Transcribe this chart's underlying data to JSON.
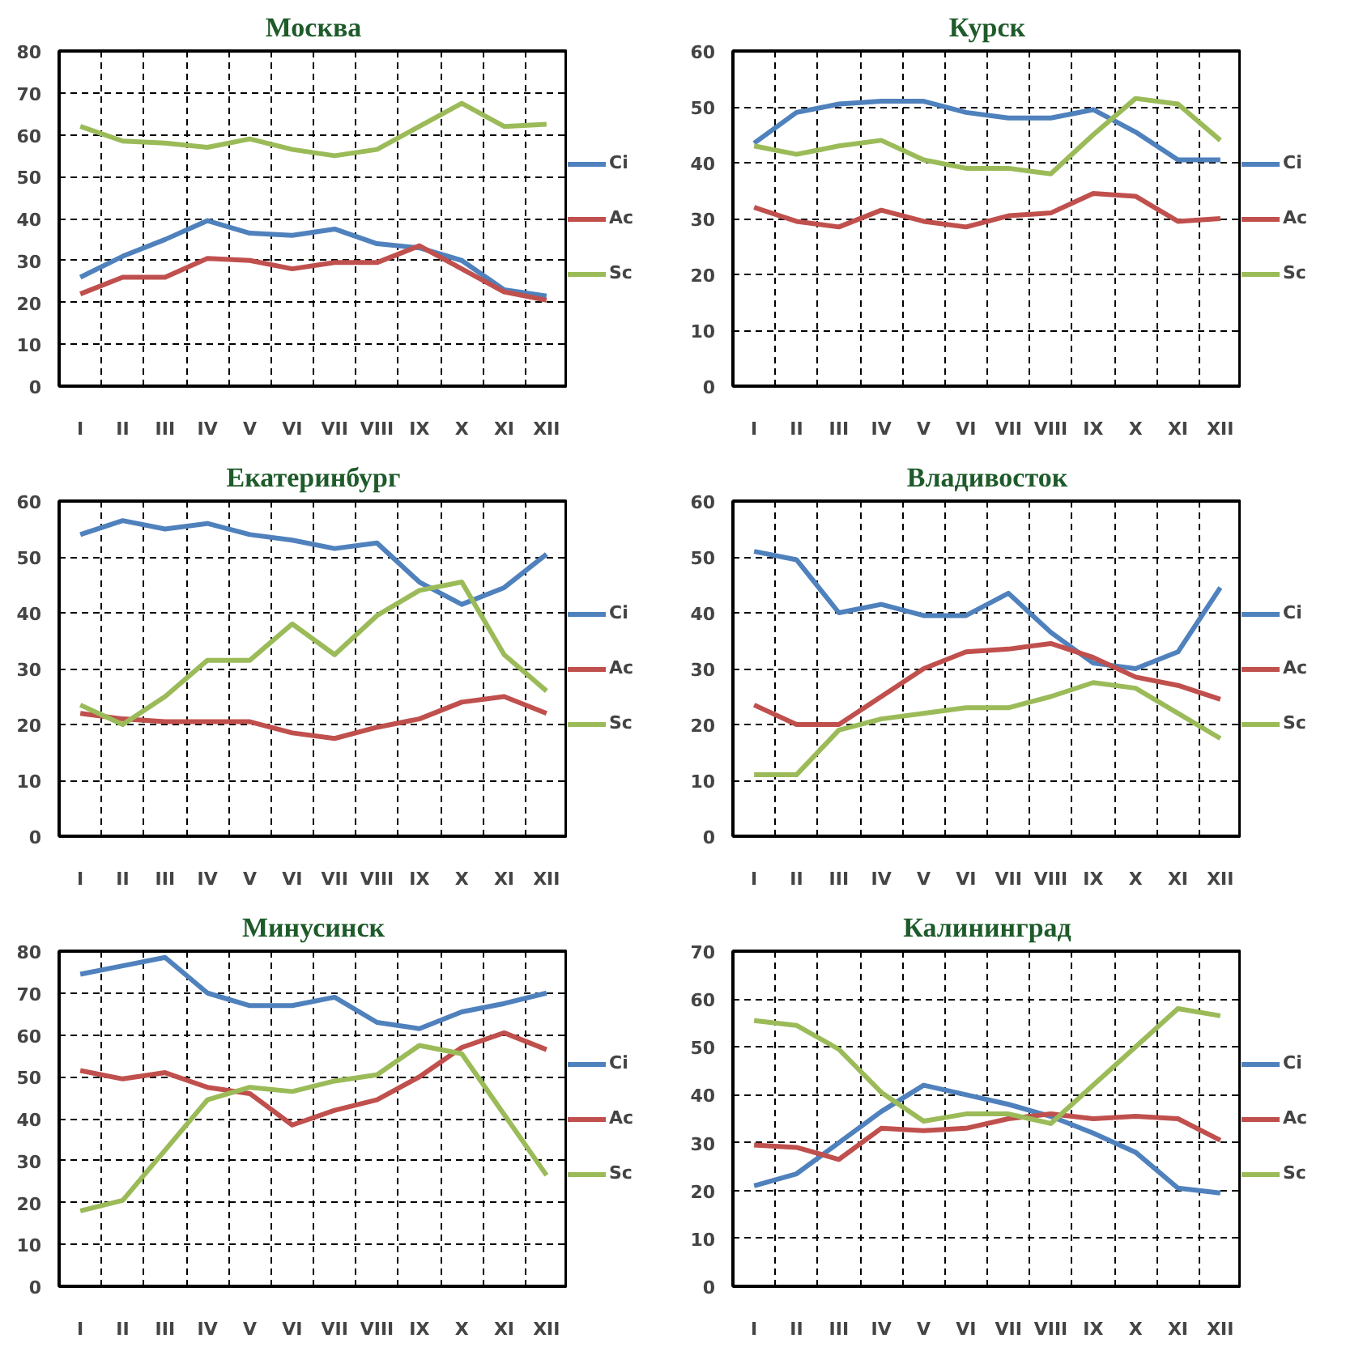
{
  "chart_data": [
    {
      "type": "line",
      "title": "Москва",
      "categories": [
        "I",
        "II",
        "III",
        "IV",
        "V",
        "VI",
        "VII",
        "VIII",
        "IX",
        "X",
        "XI",
        "XII"
      ],
      "ylim": [
        0,
        80
      ],
      "yticks": [
        0,
        10,
        20,
        30,
        40,
        50,
        60,
        70,
        80
      ],
      "grid": true,
      "legend": "right",
      "series": [
        {
          "name": "Ci",
          "color": "#4f81bd",
          "values": [
            26,
            31,
            35,
            39.5,
            36.5,
            36,
            37.5,
            34,
            33,
            30,
            23,
            21.5
          ]
        },
        {
          "name": "Ac",
          "color": "#c0504d",
          "values": [
            22,
            26,
            26,
            30.5,
            30,
            28,
            29.5,
            29.5,
            33.5,
            28,
            22.5,
            20.5
          ]
        },
        {
          "name": "Sc",
          "color": "#9bbb59",
          "values": [
            62,
            58.5,
            58,
            57,
            59,
            56.5,
            55,
            56.5,
            62,
            67.5,
            62,
            62.5
          ]
        }
      ]
    },
    {
      "type": "line",
      "title": "Курск",
      "categories": [
        "I",
        "II",
        "III",
        "IV",
        "V",
        "VI",
        "VII",
        "VIII",
        "IX",
        "X",
        "XI",
        "XII"
      ],
      "ylim": [
        0,
        60
      ],
      "yticks": [
        0,
        10,
        20,
        30,
        40,
        50,
        60
      ],
      "grid": true,
      "legend": "right",
      "series": [
        {
          "name": "Ci",
          "color": "#4f81bd",
          "values": [
            43.5,
            49,
            50.5,
            51,
            51,
            49,
            48,
            48,
            49.5,
            45.5,
            40.5,
            40.5
          ]
        },
        {
          "name": "Ac",
          "color": "#c0504d",
          "values": [
            32,
            29.5,
            28.5,
            31.5,
            29.5,
            28.5,
            30.5,
            31,
            34.5,
            34,
            29.5,
            30
          ]
        },
        {
          "name": "Sc",
          "color": "#9bbb59",
          "values": [
            43,
            41.5,
            43,
            44,
            40.5,
            39,
            39,
            38,
            45,
            51.5,
            50.5,
            44
          ]
        }
      ]
    },
    {
      "type": "line",
      "title": "Екатеринбург",
      "categories": [
        "I",
        "II",
        "III",
        "IV",
        "V",
        "VI",
        "VII",
        "VIII",
        "IX",
        "X",
        "XI",
        "XII"
      ],
      "ylim": [
        0,
        60
      ],
      "yticks": [
        0,
        10,
        20,
        30,
        40,
        50,
        60
      ],
      "grid": true,
      "legend": "right",
      "series": [
        {
          "name": "Ci",
          "color": "#4f81bd",
          "values": [
            54,
            56.5,
            55,
            56,
            54,
            53,
            51.5,
            52.5,
            45.5,
            41.5,
            44.5,
            50.5
          ]
        },
        {
          "name": "Ac",
          "color": "#c0504d",
          "values": [
            22,
            21,
            20.5,
            20.5,
            20.5,
            18.5,
            17.5,
            19.5,
            21,
            24,
            25,
            22
          ]
        },
        {
          "name": "Sc",
          "color": "#9bbb59",
          "values": [
            23.5,
            20,
            25,
            31.5,
            31.5,
            38,
            32.5,
            39.5,
            44,
            45.5,
            32.5,
            26
          ]
        }
      ]
    },
    {
      "type": "line",
      "title": "Владивосток",
      "categories": [
        "I",
        "II",
        "III",
        "IV",
        "V",
        "VI",
        "VII",
        "VIII",
        "IX",
        "X",
        "XI",
        "XII"
      ],
      "ylim": [
        0,
        60
      ],
      "yticks": [
        0,
        10,
        20,
        30,
        40,
        50,
        60
      ],
      "grid": true,
      "legend": "right",
      "series": [
        {
          "name": "Ci",
          "color": "#4f81bd",
          "values": [
            51,
            49.5,
            40,
            41.5,
            39.5,
            39.5,
            43.5,
            36.5,
            31,
            30,
            33,
            44.5
          ]
        },
        {
          "name": "Ac",
          "color": "#c0504d",
          "values": [
            23.5,
            20,
            20,
            25,
            30,
            33,
            33.5,
            34.5,
            32,
            28.5,
            27,
            24.5
          ]
        },
        {
          "name": "Sc",
          "color": "#9bbb59",
          "values": [
            11,
            11,
            19,
            21,
            22,
            23,
            23,
            25,
            27.5,
            26.5,
            22,
            17.5
          ]
        }
      ]
    },
    {
      "type": "line",
      "title": "Минусинск",
      "categories": [
        "I",
        "II",
        "III",
        "IV",
        "V",
        "VI",
        "VII",
        "VIII",
        "IX",
        "X",
        "XI",
        "XII"
      ],
      "ylim": [
        0,
        80
      ],
      "yticks": [
        0,
        10,
        20,
        30,
        40,
        50,
        60,
        70,
        80
      ],
      "grid": true,
      "legend": "right",
      "series": [
        {
          "name": "Ci",
          "color": "#4f81bd",
          "values": [
            74.5,
            76.5,
            78.5,
            70,
            67,
            67,
            69,
            63,
            61.5,
            65.5,
            67.5,
            70
          ]
        },
        {
          "name": "Ac",
          "color": "#c0504d",
          "values": [
            51.5,
            49.5,
            51,
            47.5,
            46,
            38.5,
            42,
            44.5,
            50,
            57,
            60.5,
            56.5
          ]
        },
        {
          "name": "Sc",
          "color": "#9bbb59",
          "values": [
            18,
            20.5,
            32.5,
            44.5,
            47.5,
            46.5,
            49,
            50.5,
            57.5,
            55.5,
            41,
            26.5
          ]
        }
      ]
    },
    {
      "type": "line",
      "title": "Калининград",
      "categories": [
        "I",
        "II",
        "III",
        "IV",
        "V",
        "VI",
        "VII",
        "VIII",
        "IX",
        "X",
        "XI",
        "XII"
      ],
      "ylim": [
        0,
        70
      ],
      "yticks": [
        0,
        10,
        20,
        30,
        40,
        50,
        60,
        70
      ],
      "grid": true,
      "legend": "right",
      "series": [
        {
          "name": "Ci",
          "color": "#4f81bd",
          "values": [
            21,
            23.5,
            30,
            36.5,
            42,
            40,
            38,
            35.5,
            32,
            28,
            20.5,
            19.5
          ]
        },
        {
          "name": "Ac",
          "color": "#c0504d",
          "values": [
            29.5,
            29,
            26.5,
            33,
            32.5,
            33,
            35,
            36,
            35,
            35.5,
            35,
            30.5
          ]
        },
        {
          "name": "Sc",
          "color": "#9bbb59",
          "values": [
            55.5,
            54.5,
            49.5,
            40.5,
            34.5,
            36,
            36,
            34,
            42,
            50,
            58,
            56.5
          ]
        }
      ]
    }
  ]
}
